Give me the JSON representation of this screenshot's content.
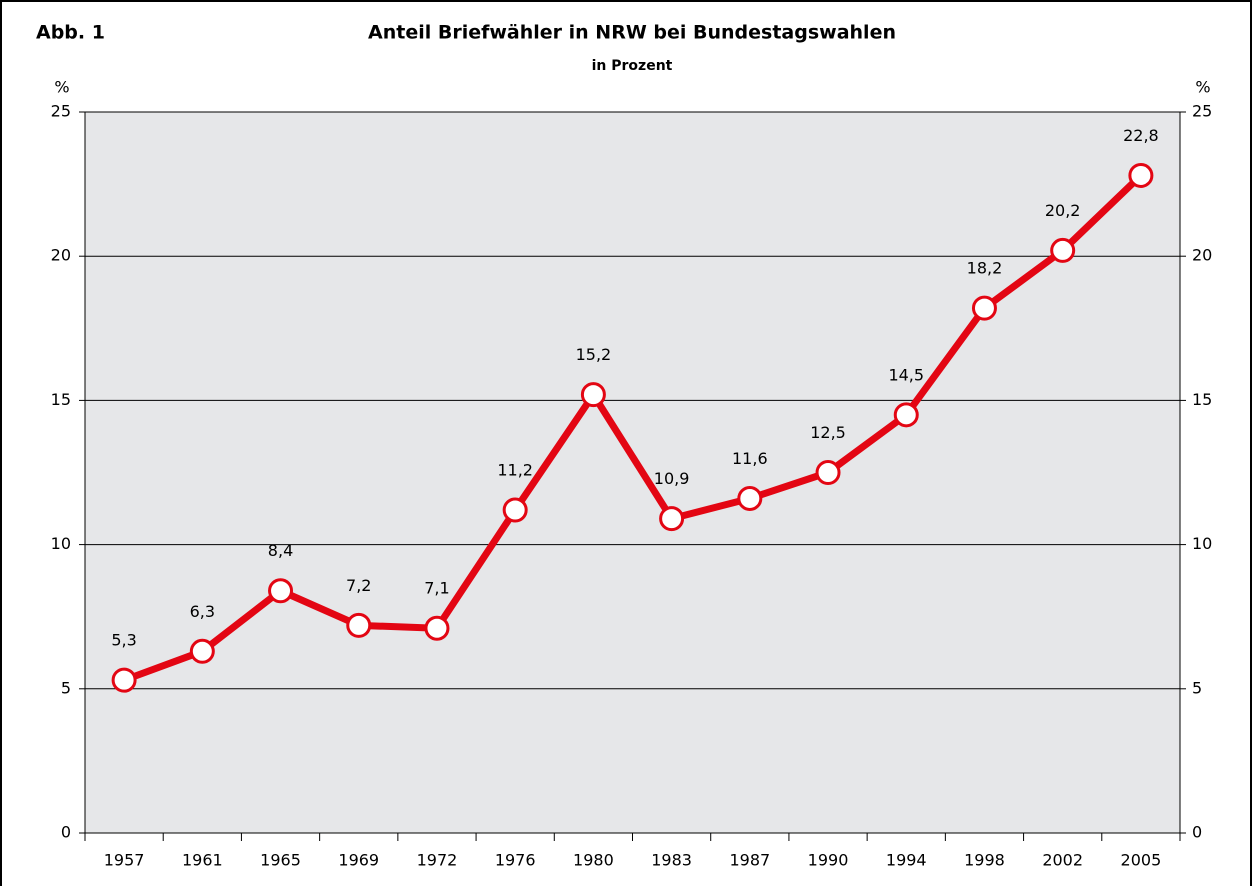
{
  "chart_data": {
    "type": "line",
    "figure_label": "Abb. 1",
    "title": "Anteil Briefwähler in NRW bei Bundestagswahlen",
    "subtitle": "in Prozent",
    "ylabel": "%",
    "y2label": "%",
    "categories": [
      "1957",
      "1961",
      "1965",
      "1969",
      "1972",
      "1976",
      "1980",
      "1983",
      "1987",
      "1990",
      "1994",
      "1998",
      "2002",
      "2005"
    ],
    "series": [
      {
        "name": "Anteil Briefwähler",
        "color": "#e30613",
        "values": [
          5.3,
          6.3,
          8.4,
          7.2,
          7.1,
          11.2,
          15.2,
          10.9,
          11.6,
          12.5,
          14.5,
          18.2,
          20.2,
          22.8
        ],
        "value_labels": [
          "5,3",
          "6,3",
          "8,4",
          "7,2",
          "7,1",
          "11,2",
          "15,2",
          "10,9",
          "11,6",
          "12,5",
          "14,5",
          "18,2",
          "20,2",
          "22,8"
        ]
      }
    ],
    "ylim": [
      0,
      25
    ],
    "yticks": [
      0,
      5,
      10,
      15,
      20,
      25
    ],
    "y2lim": [
      0,
      25
    ],
    "y2ticks": [
      0,
      5,
      10,
      15,
      20,
      25
    ],
    "grid": true
  }
}
